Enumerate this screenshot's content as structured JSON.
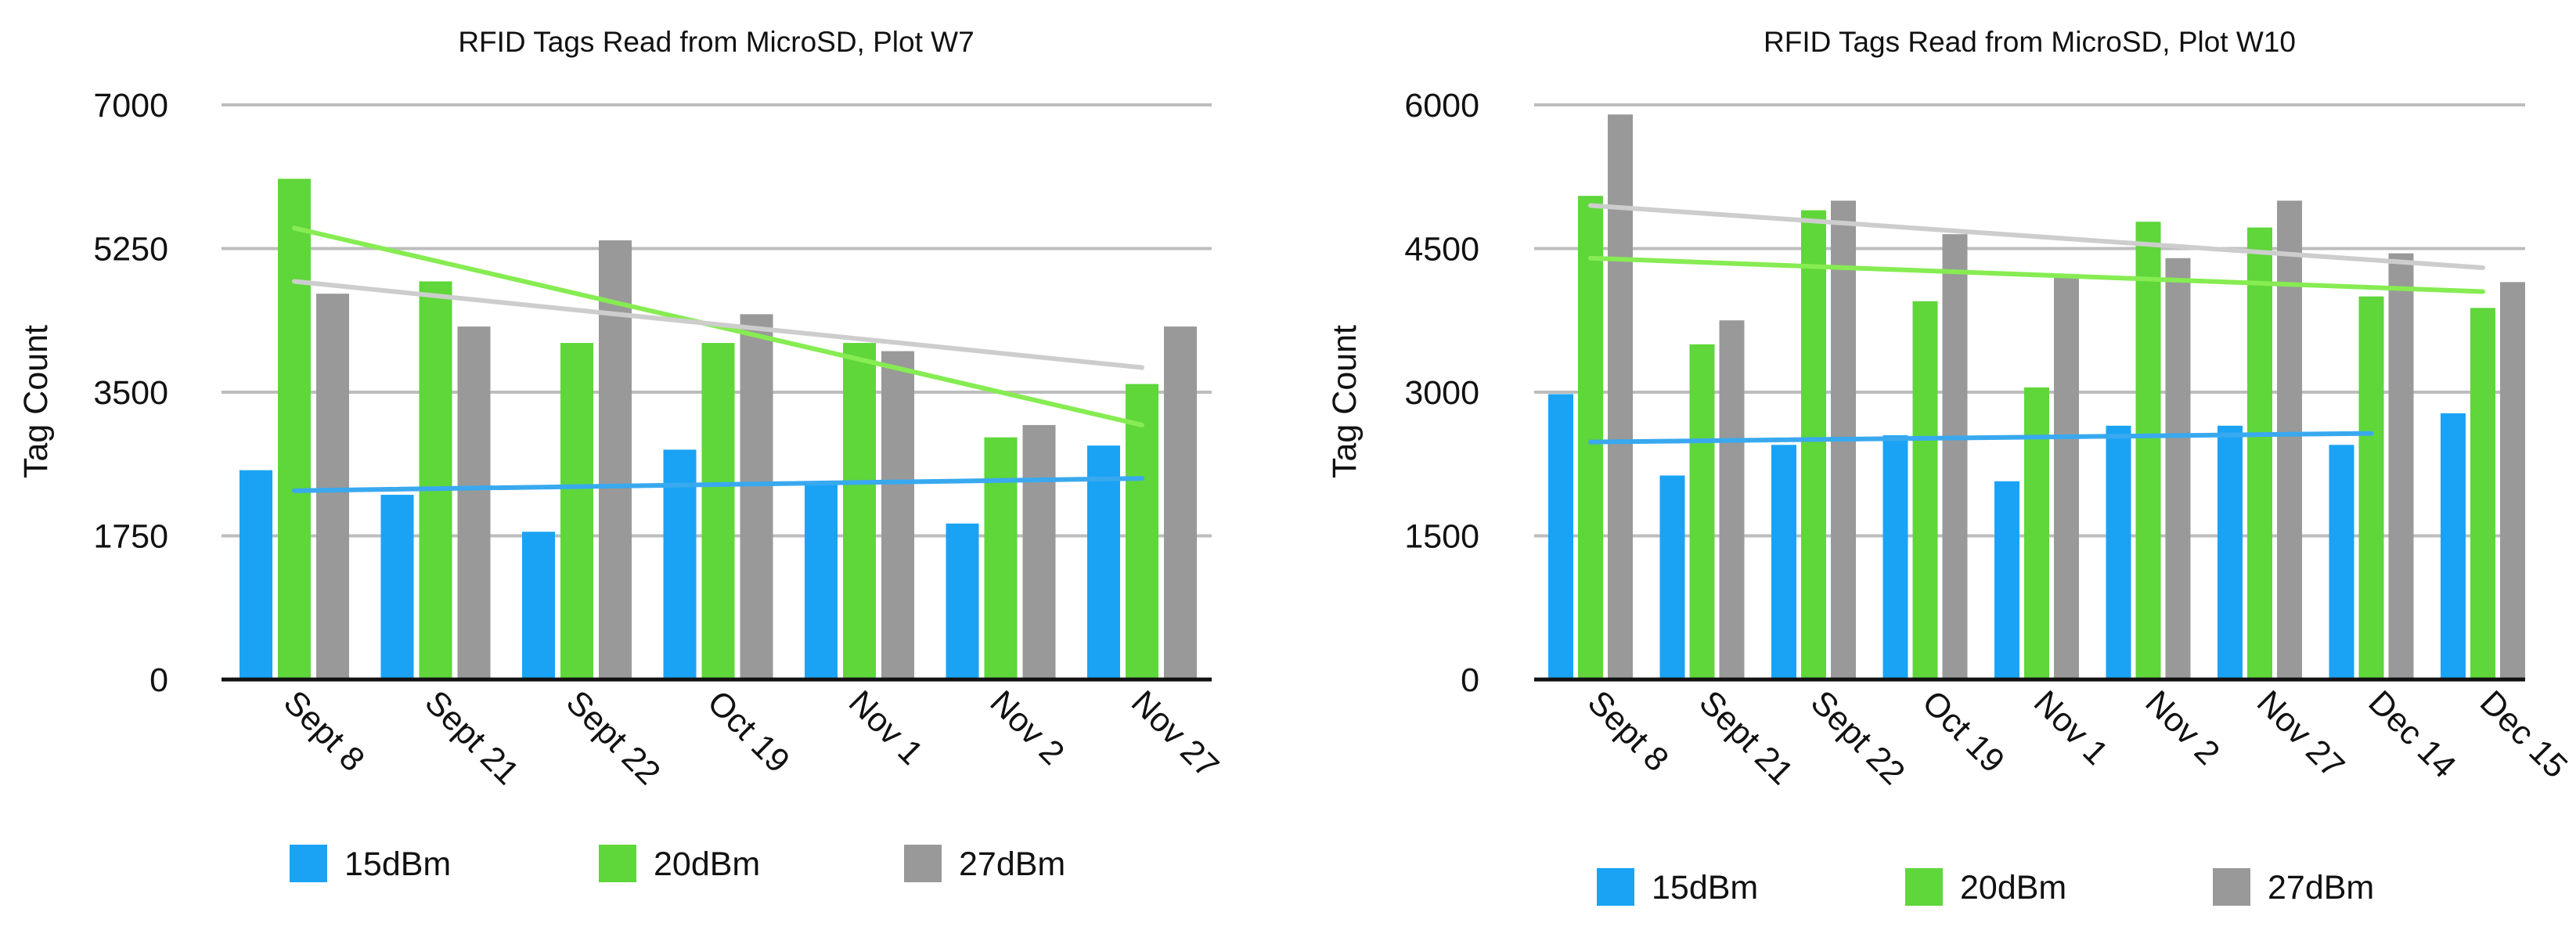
{
  "colors": {
    "s15": "#1aa3f5",
    "s20": "#5fd63a",
    "s27": "#999999",
    "t15": "#39a9ef",
    "t20": "#86ec52",
    "t27": "#cdcdcd",
    "grid": "#bdbdbd",
    "axis": "#111111"
  },
  "chart_data": [
    {
      "type": "bar",
      "title": "RFID Tags Read from MicroSD, Plot W7",
      "xlabel": "",
      "ylabel": "Tag Count",
      "ylim": [
        0,
        7000
      ],
      "yticks": [
        0,
        1750,
        3500,
        5250,
        7000
      ],
      "ytick_labels": [
        "0",
        "1750",
        "3500",
        "5250",
        "7000"
      ],
      "grid": true,
      "legend_position": "bottom",
      "categories": [
        "Sept 8",
        "Sept 21",
        "Sept 22",
        "Oct 19",
        "Nov 1",
        "Nov 2",
        "Nov 27"
      ],
      "series": [
        {
          "name": "15dBm",
          "values": [
            2550,
            2250,
            1800,
            2800,
            2400,
            1900,
            2850
          ],
          "trendline": {
            "from_index": 0,
            "to_index": 6,
            "start": 2300,
            "end": 2450
          }
        },
        {
          "name": "20dBm",
          "values": [
            6100,
            4850,
            4100,
            4100,
            4100,
            2950,
            3600
          ],
          "trendline": {
            "from_index": 0,
            "to_index": 6,
            "start": 5500,
            "end": 3100
          }
        },
        {
          "name": "27dBm",
          "values": [
            4700,
            4300,
            5350,
            4450,
            4000,
            3100,
            4300
          ],
          "trendline": {
            "from_index": 0,
            "to_index": 6,
            "start": 4850,
            "end": 3800
          }
        }
      ]
    },
    {
      "type": "bar",
      "title": "RFID Tags Read from MicroSD, Plot W10",
      "xlabel": "",
      "ylabel": "Tag Count",
      "ylim": [
        0,
        6000
      ],
      "yticks": [
        0,
        1500,
        3000,
        4500,
        6000
      ],
      "ytick_labels": [
        "0",
        "1500",
        "3000",
        "4500",
        "6000"
      ],
      "grid": true,
      "legend_position": "bottom",
      "categories": [
        "Sept 8",
        "Sept 21",
        "Sept 22",
        "Oct 19",
        "Nov 1",
        "Nov 2",
        "Nov 27",
        "Dec 14",
        "Dec 15"
      ],
      "series": [
        {
          "name": "15dBm",
          "values": [
            2980,
            2130,
            2450,
            2550,
            2070,
            2650,
            2650,
            2450,
            2780
          ],
          "trendline": {
            "from_index": 0,
            "to_index": 7,
            "start": 2480,
            "end": 2570
          }
        },
        {
          "name": "20dBm",
          "values": [
            5050,
            3500,
            4900,
            3950,
            3050,
            4780,
            4720,
            4000,
            3880
          ],
          "trendline": {
            "from_index": 0,
            "to_index": 8,
            "start": 4400,
            "end": 4050
          }
        },
        {
          "name": "27dBm",
          "values": [
            5900,
            3750,
            5000,
            4650,
            4200,
            4400,
            5000,
            4450,
            4150
          ],
          "trendline": {
            "from_index": 0,
            "to_index": 8,
            "start": 4950,
            "end": 4300
          }
        }
      ]
    }
  ]
}
